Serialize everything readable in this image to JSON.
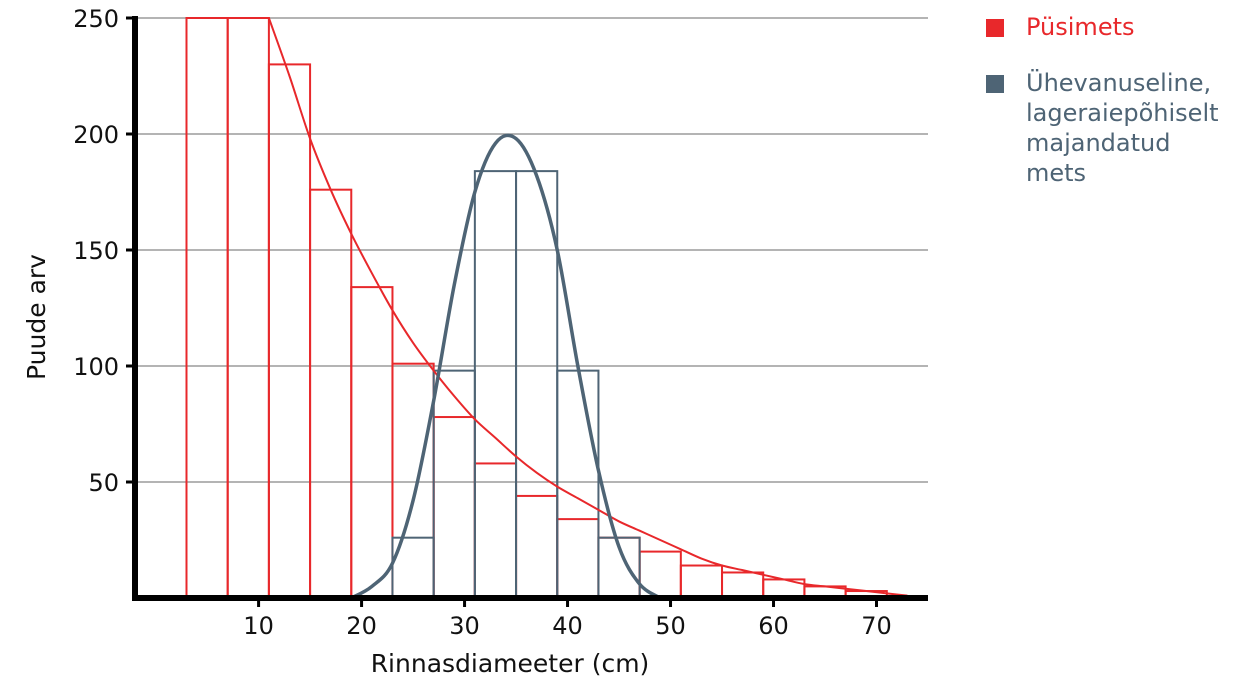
{
  "chart_data": {
    "type": "bar",
    "xlabel": "Rinnasdiameeter (cm)",
    "ylabel": "Puude arv",
    "xlim": [
      -2,
      75
    ],
    "ylim": [
      0,
      250
    ],
    "x_ticks": [
      10,
      20,
      30,
      40,
      50,
      60,
      70
    ],
    "y_ticks": [
      50,
      100,
      150,
      200,
      250
    ],
    "grid": "horizontal",
    "legend_position": "top-right",
    "colors": {
      "pusimets": "#e8282b",
      "uhevanuseline": "#4e6475"
    },
    "series": [
      {
        "name": "Püsimets",
        "type": "histogram",
        "bin_edges": [
          3,
          7,
          11,
          15,
          19,
          23,
          27,
          31,
          35,
          39,
          43,
          47,
          51,
          55,
          59,
          63,
          67,
          71
        ],
        "values": [
          250,
          250,
          230,
          176,
          134,
          101,
          78,
          58,
          44,
          34,
          26,
          20,
          14,
          11,
          8,
          5,
          3
        ],
        "curve": {
          "x": [
            11,
            13,
            15,
            17,
            19,
            21,
            23,
            25,
            27,
            29,
            31,
            33,
            35,
            37,
            39,
            41,
            43,
            45,
            47,
            49,
            51,
            53,
            55,
            57,
            59,
            61,
            63,
            65,
            67,
            69,
            71,
            73
          ],
          "y": [
            250,
            225,
            198,
            176,
            157,
            140,
            124,
            110,
            98,
            87,
            77,
            69,
            61,
            54,
            48,
            43,
            38,
            33,
            29,
            25,
            21,
            17,
            14,
            12,
            10,
            8,
            6,
            5,
            4,
            3,
            2,
            1
          ]
        }
      },
      {
        "name": "Ühevanuseline, lageraiepõhiselt majandatud mets",
        "type": "histogram",
        "bin_edges": [
          23,
          27,
          31,
          35,
          39,
          43,
          47
        ],
        "values": [
          26,
          98,
          184,
          184,
          98,
          26
        ],
        "curve": {
          "x": [
            19,
            21,
            23,
            25,
            27,
            29,
            31,
            33,
            35,
            37,
            39,
            41,
            43,
            45,
            47,
            49
          ],
          "y": [
            0,
            5,
            15,
            42,
            85,
            135,
            175,
            196,
            198,
            182,
            150,
            100,
            55,
            22,
            6,
            0
          ]
        }
      }
    ]
  },
  "legend": {
    "item1": "Püsimets",
    "item2_line1": "Ühevanuseline,",
    "item2_line2": "lageraiepõhiselt",
    "item2_line3": "majandatud mets"
  }
}
